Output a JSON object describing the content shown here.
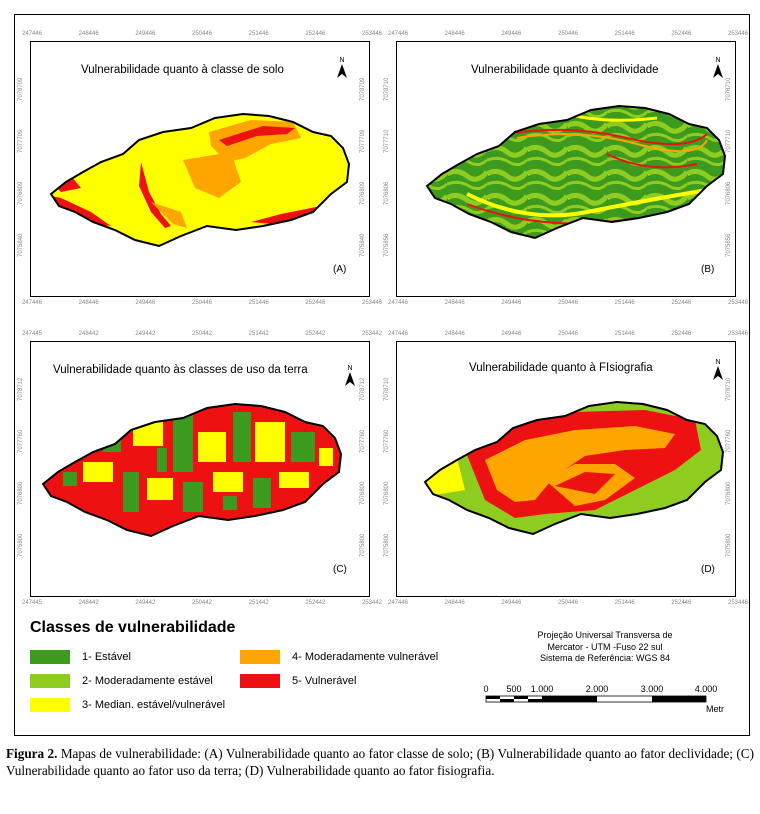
{
  "panels": [
    {
      "id": "A",
      "title": "Vulnerabilidade quanto à classe de solo",
      "label": "(A)",
      "ticks_top": [
        "247446",
        "248446",
        "249446",
        "250446",
        "251446",
        "252446",
        "253446"
      ],
      "ticks_bottom": [
        "247446",
        "248446",
        "249446",
        "250446",
        "251446",
        "252446",
        "253446"
      ],
      "ticks_left": [
        "7078709",
        "7077709",
        "7076809",
        "7075840"
      ],
      "ticks_right": [
        "7078709",
        "7077709",
        "7076809",
        "7075840"
      ]
    },
    {
      "id": "B",
      "title": "Vulnerabilidade quanto à declividade",
      "label": "(B)",
      "ticks_top": [
        "247446",
        "248446",
        "249446",
        "250446",
        "251446",
        "252446",
        "253446"
      ],
      "ticks_bottom": [
        "247446",
        "248446",
        "249446",
        "250446",
        "251446",
        "252446",
        "253446"
      ],
      "ticks_left": [
        "7078710",
        "7077710",
        "7076806",
        "7075856"
      ],
      "ticks_right": [
        "7078710",
        "7077710",
        "7076806",
        "7075856"
      ]
    },
    {
      "id": "C",
      "title": "Vulnerabilidade quanto às classes de uso da terra",
      "label": "(C)",
      "ticks_top": [
        "247445",
        "248442",
        "249442",
        "250442",
        "251442",
        "252442",
        "253442"
      ],
      "ticks_bottom": [
        "247445",
        "248442",
        "249442",
        "250442",
        "251442",
        "252442",
        "253442"
      ],
      "ticks_left": [
        "7078712",
        "7077760",
        "7076800",
        "7075800"
      ],
      "ticks_right": [
        "7078712",
        "7077760",
        "7076800",
        "7075800"
      ]
    },
    {
      "id": "D",
      "title": "Vulnerabilidade quanto à FIsiografia",
      "label": "(D)",
      "ticks_top": [
        "247446",
        "248446",
        "249446",
        "250446",
        "251446",
        "252446",
        "253446"
      ],
      "ticks_bottom": [
        "247446",
        "248446",
        "249446",
        "250446",
        "251446",
        "252446",
        "253446"
      ],
      "ticks_left": [
        "7078710",
        "7077760",
        "7076800",
        "7075800"
      ],
      "ticks_right": [
        "7078710",
        "7077760",
        "7076800",
        "7075800"
      ]
    }
  ],
  "north_label": "N",
  "legend": {
    "title": "Classes de vulnerabilidade",
    "items": [
      {
        "label": "1- Estável",
        "color": "#3c9a1e"
      },
      {
        "label": "2- Moderadamente estável",
        "color": "#8fcc20"
      },
      {
        "label": "3- Median. estável/vulnerável",
        "color": "#ffff00"
      },
      {
        "label": "4- Moderadamente vulnerável",
        "color": "#ffa500"
      },
      {
        "label": "5- Vulnerável",
        "color": "#ee1111"
      }
    ]
  },
  "projection": {
    "line1": "Projeção Universal Transversa de",
    "line2": "Mercator - UTM -Fuso 22 sul",
    "line3": "Sistema de Referência: WGS 84"
  },
  "scale": {
    "labels": [
      "0",
      "500",
      "1.000",
      "2.000",
      "3.000",
      "4.000"
    ],
    "unit": "Metros"
  },
  "caption": {
    "lead": "Figura 2.",
    "text": " Mapas de vulnerabilidade: (A) Vulnerabilidade quanto ao fator classe de solo; (B) Vulnerabilidade quanto ao fator declividade; (C) Vulnerabilidade quanto ao fator uso da terra; (D) Vulnerabilidade quanto ao fator fisiografia."
  }
}
